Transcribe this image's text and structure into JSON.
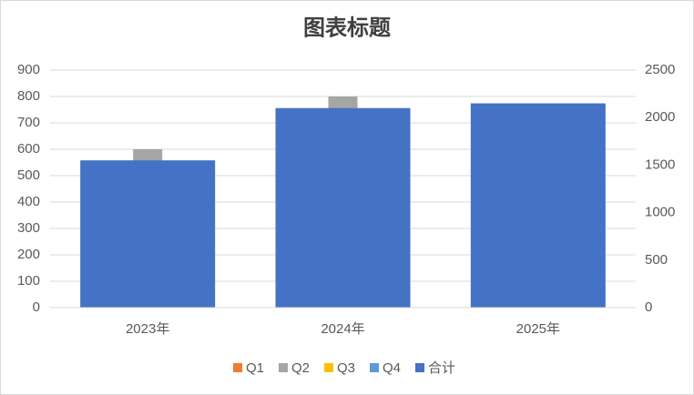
{
  "chart_data": {
    "type": "bar",
    "title": "图表标题",
    "categories": [
      "2023年",
      "2024年",
      "2025年"
    ],
    "series": [
      {
        "name": "Q1",
        "color": "#ed7d31",
        "values": [
          300,
          400,
          350
        ]
      },
      {
        "name": "Q2",
        "color": "#a5a5a5",
        "values": [
          300,
          400,
          400
        ]
      },
      {
        "name": "Q3",
        "color": "#ffc000",
        "values": [
          0,
          0,
          0
        ]
      },
      {
        "name": "Q4",
        "color": "#5b9bd5",
        "values": [
          0,
          0,
          0
        ]
      },
      {
        "name": "合计",
        "color": "#4472c4",
        "values": [
          1550,
          2100,
          2150
        ],
        "axis": "y2"
      }
    ],
    "ylim": [
      0,
      900
    ],
    "yticks": [
      0,
      100,
      200,
      300,
      400,
      500,
      600,
      700,
      800,
      900
    ],
    "y2lim": [
      0,
      2500
    ],
    "y2ticks": [
      0,
      500,
      1000,
      1500,
      2000,
      2500
    ],
    "grid": true,
    "stacked": true,
    "legend": "bottom"
  }
}
